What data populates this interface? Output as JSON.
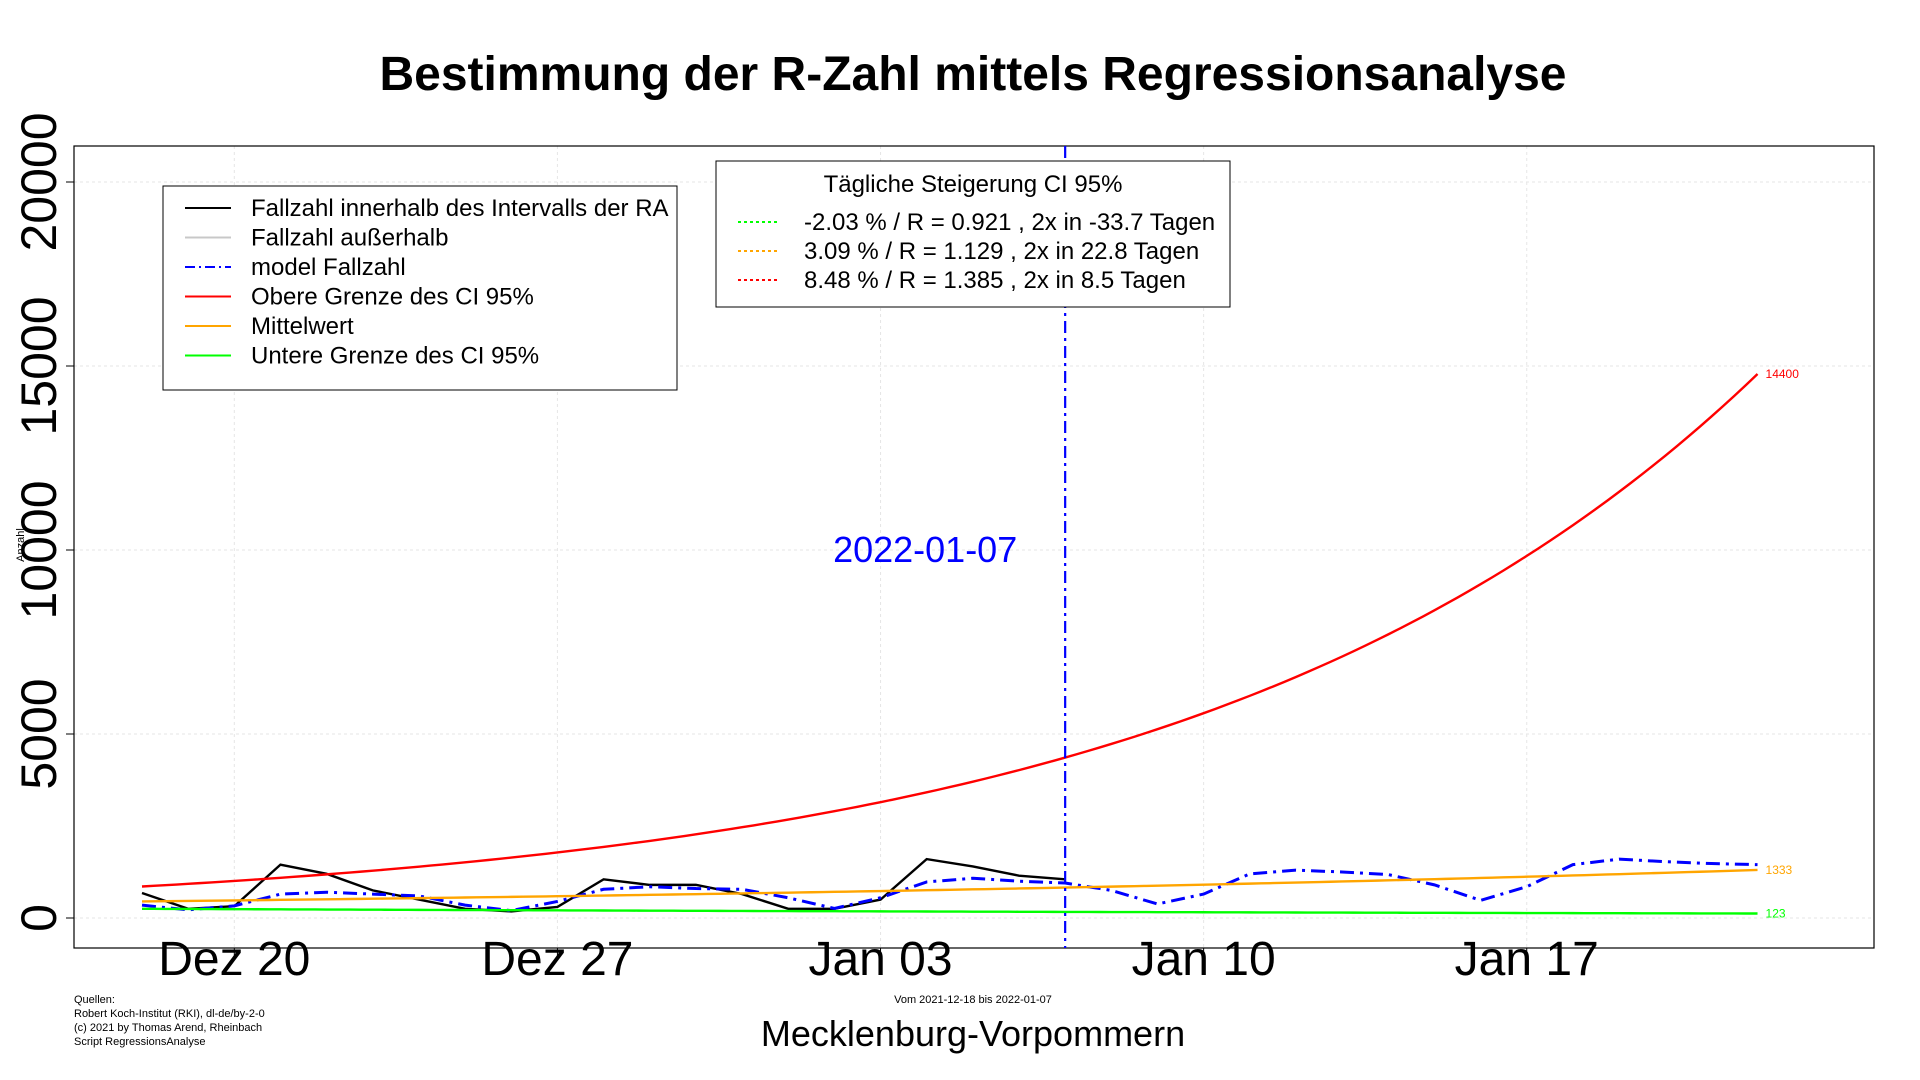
{
  "title": "Bestimmung der R-Zahl mittels Regressionsanalyse",
  "chart_data": {
    "type": "line",
    "title": "Bestimmung der R-Zahl mittels Regressionsanalyse",
    "xlabel": "Mecklenburg-Vorpommern",
    "ylabel": "Anzahl",
    "subtitle": "Vom 2021-12-18 bis 2022-01-07",
    "x_start": "2021-12-18",
    "x_end": "2022-01-23",
    "ylim": [
      -800,
      20800
    ],
    "yticks": [
      0,
      5000,
      10000,
      15000,
      20000
    ],
    "ytick_labels": [
      "0",
      "5000",
      "10000",
      "15000",
      "20000"
    ],
    "xticks": [
      "2021-12-20",
      "2021-12-27",
      "2022-01-03",
      "2022-01-10",
      "2022-01-17"
    ],
    "xtick_labels": [
      "Dez 20",
      "Dez 27",
      "Jan 03",
      "Jan 10",
      "Jan 17"
    ],
    "grid": true,
    "vline": {
      "date": "2022-01-07",
      "label": "2022-01-07",
      "color": "#0000ff"
    },
    "series": [
      {
        "name": "Fallzahl innerhalb des Intervalls der RA",
        "color": "#000000",
        "style": "solid",
        "x": [
          "2021-12-18",
          "2021-12-19",
          "2021-12-20",
          "2021-12-21",
          "2021-12-22",
          "2021-12-23",
          "2021-12-24",
          "2021-12-25",
          "2021-12-26",
          "2021-12-27",
          "2021-12-28",
          "2021-12-29",
          "2021-12-30",
          "2021-12-31",
          "2022-01-01",
          "2022-01-02",
          "2022-01-03",
          "2022-01-04",
          "2022-01-05",
          "2022-01-06",
          "2022-01-07"
        ],
        "y": [
          680,
          250,
          320,
          1450,
          1200,
          750,
          500,
          250,
          180,
          300,
          1050,
          900,
          900,
          650,
          250,
          250,
          500,
          1600,
          1400,
          1150,
          1050
        ]
      },
      {
        "name": "Fallzahl außerhalb",
        "color": "#c8c8c8",
        "style": "solid",
        "x": [],
        "y": []
      },
      {
        "name": "model Fallzahl",
        "color": "#0000ff",
        "style": "dashdot",
        "x": [
          "2021-12-18",
          "2021-12-19",
          "2021-12-20",
          "2021-12-21",
          "2021-12-22",
          "2021-12-23",
          "2021-12-24",
          "2021-12-25",
          "2021-12-26",
          "2021-12-27",
          "2021-12-28",
          "2021-12-29",
          "2021-12-30",
          "2021-12-31",
          "2022-01-01",
          "2022-01-02",
          "2022-01-03",
          "2022-01-04",
          "2022-01-05",
          "2022-01-06",
          "2022-01-07",
          "2022-01-08",
          "2022-01-09",
          "2022-01-10",
          "2022-01-11",
          "2022-01-12",
          "2022-01-13",
          "2022-01-14",
          "2022-01-15",
          "2022-01-16",
          "2022-01-17",
          "2022-01-18",
          "2022-01-19",
          "2022-01-20",
          "2022-01-21",
          "2022-01-22"
        ],
        "y": [
          350,
          220,
          330,
          650,
          700,
          650,
          600,
          350,
          200,
          450,
          780,
          850,
          800,
          780,
          550,
          260,
          550,
          980,
          1080,
          1000,
          950,
          750,
          380,
          650,
          1200,
          1300,
          1250,
          1180,
          900,
          480,
          850,
          1450,
          1600,
          1530,
          1480,
          1450
        ]
      },
      {
        "name": "Obere Grenze des CI 95%",
        "color": "#ff0000",
        "style": "solid",
        "kind": "exp",
        "start": 856,
        "daily_rate": 0.0848,
        "end_label": "14400"
      },
      {
        "name": "Mittelwert",
        "color": "#ffa500",
        "style": "solid",
        "kind": "exp",
        "start": 450,
        "daily_rate": 0.0309,
        "end_label": "1333"
      },
      {
        "name": "Untere Grenze des CI 95%",
        "color": "#00ff00",
        "style": "solid",
        "kind": "exp",
        "start": 250,
        "daily_rate": -0.0203,
        "end_label": "123"
      }
    ],
    "legend": {
      "placement": "top-left",
      "items": [
        {
          "label": "Fallzahl innerhalb des Intervalls der RA",
          "color": "#000000",
          "dash": ""
        },
        {
          "label": "Fallzahl außerhalb",
          "color": "#c8c8c8",
          "dash": ""
        },
        {
          "label": "model Fallzahl",
          "color": "#0000ff",
          "dash": "10,4,2,4"
        },
        {
          "label": "Obere Grenze des CI 95%",
          "color": "#ff0000",
          "dash": ""
        },
        {
          "label": "Mittelwert",
          "color": "#ffa500",
          "dash": ""
        },
        {
          "label": "Untere Grenze des CI 95%",
          "color": "#00ff00",
          "dash": ""
        }
      ]
    },
    "ci_legend": {
      "placement": "top-center",
      "title": "Tägliche Steigerung CI  95%",
      "items": [
        {
          "label": "-2.03 % / R = 0.921 , 2x in -33.7 Tagen",
          "color": "#00ff00"
        },
        {
          "label": "3.09 % / R = 1.129 , 2x in 22.8 Tagen",
          "color": "#ffa500"
        },
        {
          "label": "8.48 % / R = 1.385 , 2x in 8.5 Tagen",
          "color": "#ff0000"
        }
      ]
    }
  },
  "sources": [
    "Quellen:",
    "Robert Koch-Institut (RKI), dl-de/by-2-0",
    "(c) 2021 by Thomas Arend, Rheinbach",
    "Script RegressionsAnalyse"
  ]
}
